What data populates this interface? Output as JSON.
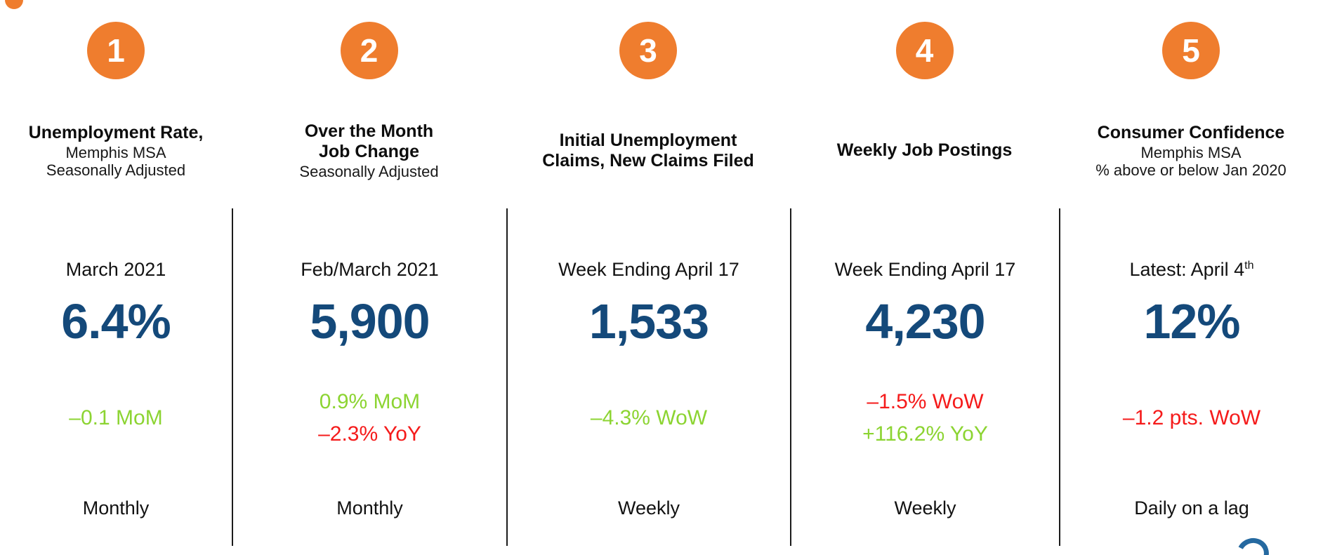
{
  "slide": {
    "theme": {
      "badge_orange": "#EF7D2E",
      "value_blue": "#14497A",
      "positive_green": "#8CD432",
      "negative_red": "#F51B1B",
      "divider_black": "#1c1c1c"
    },
    "columns": [
      {
        "number": "1",
        "title_lines": [
          "Unemployment Rate,"
        ],
        "subtitle_lines": [
          "Memphis MSA",
          "Seasonally Adjusted"
        ],
        "date": "March 2021",
        "date_sup": "",
        "value": "6.4%",
        "changes": [
          {
            "text": "–0.1 MoM",
            "color": "green"
          }
        ],
        "frequency": "Monthly"
      },
      {
        "number": "2",
        "title_lines": [
          "Over the Month",
          "Job Change"
        ],
        "subtitle_lines": [
          "Seasonally Adjusted"
        ],
        "date": "Feb/March 2021",
        "date_sup": "",
        "value": "5,900",
        "changes": [
          {
            "text": "0.9% MoM",
            "color": "green"
          },
          {
            "text": "–2.3% YoY",
            "color": "red"
          }
        ],
        "frequency": "Monthly"
      },
      {
        "number": "3",
        "title_lines": [
          "Initial Unemployment",
          "Claims, New Claims Filed"
        ],
        "subtitle_lines": [],
        "date": "Week Ending April 17",
        "date_sup": "",
        "value": "1,533",
        "changes": [
          {
            "text": "–4.3% WoW",
            "color": "green"
          }
        ],
        "frequency": "Weekly"
      },
      {
        "number": "4",
        "title_lines": [
          "Weekly Job Postings"
        ],
        "subtitle_lines": [],
        "date": "Week Ending April 17",
        "date_sup": "",
        "value": "4,230",
        "changes": [
          {
            "text": "–1.5% WoW",
            "color": "red"
          },
          {
            "text": "+116.2% YoY",
            "color": "green"
          }
        ],
        "frequency": "Weekly"
      },
      {
        "number": "5",
        "title_lines": [
          "Consumer Confidence"
        ],
        "subtitle_lines": [
          "Memphis MSA",
          "% above or below Jan 2020"
        ],
        "date": "Latest: April 4",
        "date_sup": "th",
        "value": "12%",
        "changes": [
          {
            "text": "–1.2 pts. WoW",
            "color": "red"
          }
        ],
        "frequency": "Daily on a lag"
      }
    ]
  }
}
